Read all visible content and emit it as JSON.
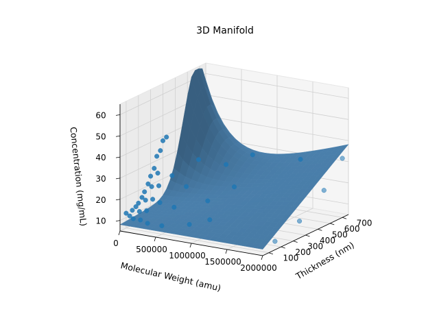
{
  "chart_data": {
    "type": "scatter",
    "subtype": "3d-surface-with-scatter",
    "title": "3D Manifold",
    "xlabel": "Molecular Weight (amu)",
    "ylabel": "Thickness (nm)",
    "zlabel": "Concentration (mg/mL)",
    "xlim": [
      0,
      2000000
    ],
    "ylim": [
      50,
      750
    ],
    "zlim": [
      5,
      65
    ],
    "xticks": [
      "0",
      "500000",
      "1000000",
      "1500000",
      "2000000"
    ],
    "yticks": [
      "100",
      "200",
      "300",
      "400",
      "500",
      "600",
      "700"
    ],
    "zticks": [
      "10",
      "20",
      "30",
      "40",
      "50",
      "60"
    ],
    "grid": true,
    "colors": {
      "surface": "#4a7fab",
      "points": "#1f77b4",
      "pane": "#f2f2f2",
      "grid": "#d0d0d0"
    },
    "points": [
      [
        0,
        100,
        12
      ],
      [
        0,
        150,
        12
      ],
      [
        0,
        200,
        14
      ],
      [
        0,
        250,
        18
      ],
      [
        0,
        300,
        24
      ],
      [
        0,
        350,
        32
      ],
      [
        0,
        400,
        38
      ],
      [
        50000,
        100,
        11
      ],
      [
        50000,
        150,
        14
      ],
      [
        50000,
        200,
        17
      ],
      [
        50000,
        250,
        22
      ],
      [
        50000,
        300,
        28
      ],
      [
        50000,
        350,
        35
      ],
      [
        50000,
        400,
        40
      ],
      [
        100000,
        100,
        10
      ],
      [
        100000,
        150,
        12
      ],
      [
        100000,
        200,
        16
      ],
      [
        100000,
        250,
        21
      ],
      [
        100000,
        300,
        26
      ],
      [
        200000,
        100,
        10
      ],
      [
        200000,
        150,
        13
      ],
      [
        200000,
        200,
        17
      ],
      [
        200000,
        250,
        22
      ],
      [
        300000,
        100,
        9
      ],
      [
        300000,
        200,
        16
      ],
      [
        300000,
        300,
        26
      ],
      [
        500000,
        100,
        9
      ],
      [
        500000,
        200,
        15
      ],
      [
        500000,
        300,
        22
      ],
      [
        500000,
        400,
        32
      ],
      [
        800000,
        150,
        10
      ],
      [
        800000,
        300,
        17
      ],
      [
        800000,
        450,
        30
      ],
      [
        1000000,
        200,
        12
      ],
      [
        1000000,
        400,
        22
      ],
      [
        1000000,
        550,
        33
      ],
      [
        1500000,
        300,
        11
      ],
      [
        1500000,
        500,
        20
      ],
      [
        1500000,
        650,
        31
      ],
      [
        2000000,
        150,
        9
      ],
      [
        2000000,
        350,
        13
      ],
      [
        2000000,
        550,
        22
      ],
      [
        2000000,
        700,
        33
      ]
    ]
  }
}
